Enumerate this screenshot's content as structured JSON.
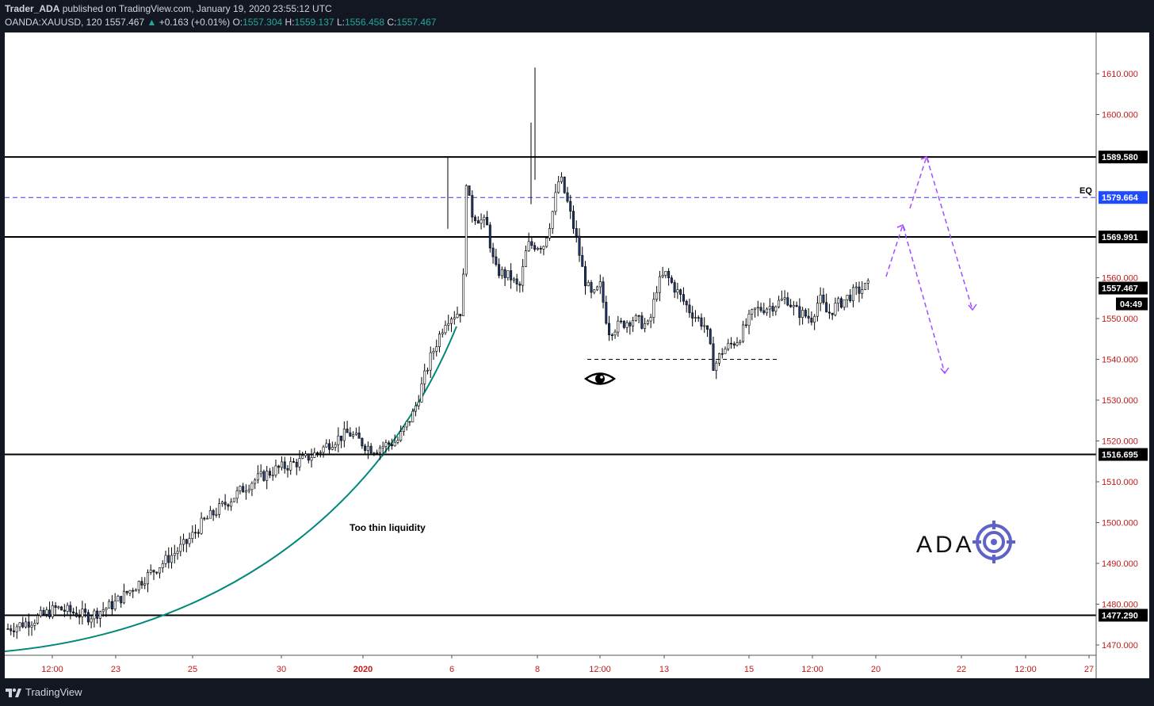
{
  "header": {
    "publisher": "Trader_ADA",
    "published_text": "published on TradingView.com, January 19, 2020 23:55:12 UTC",
    "symbol": "OANDA:XAUUSD, 120",
    "last": "1557.467",
    "change": "+0.163 (+0.01%)",
    "o_label": "O:",
    "o": "1557.304",
    "h_label": "H:",
    "h": "1559.137",
    "l_label": "L:",
    "l": "1556.458",
    "c_label": "C:",
    "c": "1557.467"
  },
  "footer": {
    "brand": "TradingView"
  },
  "colors": {
    "up": "#26a69a",
    "candle_body_down": "#1e3a6e",
    "projection": "#a64dff",
    "eq_line": "#3f3fd8",
    "axis_text": "#c21a1a"
  },
  "chart_data": {
    "type": "candlestick",
    "y_axis": {
      "range": [
        1466,
        1617
      ],
      "ticks": [
        1470,
        1480,
        1490,
        1500,
        1510,
        1520,
        1530,
        1540,
        1550,
        1560,
        1600,
        1610
      ],
      "tick_labels": [
        "1470.000",
        "1480.000",
        "1490.000",
        "1500.000",
        "1510.000",
        "1520.000",
        "1530.000",
        "1540.000",
        "1550.000",
        "1560.000",
        "1600.000",
        "1610.000"
      ]
    },
    "x_axis": {
      "tick_labels": [
        "12:00",
        "23",
        "25",
        "30",
        "2020",
        "6",
        "8",
        "12:00",
        "13",
        "15",
        "12:00",
        "20",
        "22",
        "12:00",
        "27"
      ]
    },
    "horizontal_levels": [
      {
        "price": 1589.58,
        "label": "1589.580",
        "style": "solid"
      },
      {
        "price": 1579.664,
        "label": "1579.664",
        "style": "dashed",
        "name": "EQ"
      },
      {
        "price": 1569.991,
        "label": "1569.991",
        "style": "solid"
      },
      {
        "price": 1516.695,
        "label": "1516.695",
        "style": "solid"
      },
      {
        "price": 1477.29,
        "label": "1477.290",
        "style": "solid"
      }
    ],
    "last_price": {
      "price": 1557.467,
      "label": "1557.467",
      "countdown": "04:49"
    },
    "candle_path": [
      [
        0,
        1474
      ],
      [
        3,
        1476
      ],
      [
        6,
        1479
      ],
      [
        10,
        1477
      ],
      [
        13,
        1480
      ],
      [
        16,
        1485
      ],
      [
        19,
        1490
      ],
      [
        22,
        1495
      ],
      [
        24,
        1500
      ],
      [
        27,
        1505
      ],
      [
        30,
        1510
      ],
      [
        33,
        1513
      ],
      [
        36,
        1515
      ],
      [
        38,
        1517
      ],
      [
        40,
        1520
      ],
      [
        42,
        1522
      ],
      [
        44,
        1519
      ],
      [
        45,
        1518
      ],
      [
        48,
        1520
      ],
      [
        50,
        1527
      ],
      [
        52,
        1540
      ],
      [
        54,
        1550
      ],
      [
        56,
        1552
      ],
      [
        56.5,
        1585
      ],
      [
        57,
        1576
      ],
      [
        59,
        1573
      ],
      [
        60,
        1562
      ],
      [
        62,
        1560
      ],
      [
        63,
        1557
      ],
      [
        64,
        1568
      ],
      [
        66,
        1568
      ],
      [
        67,
        1575
      ],
      [
        68,
        1585
      ],
      [
        69,
        1578
      ],
      [
        70,
        1570
      ],
      [
        71,
        1560
      ],
      [
        72,
        1555
      ],
      [
        73,
        1558
      ],
      [
        74,
        1547
      ],
      [
        75,
        1548
      ],
      [
        77,
        1550
      ],
      [
        79,
        1548
      ],
      [
        80,
        1558
      ],
      [
        81,
        1561
      ],
      [
        82,
        1558
      ],
      [
        84,
        1552
      ],
      [
        86,
        1548
      ],
      [
        87,
        1538
      ],
      [
        88,
        1542
      ],
      [
        90,
        1545
      ],
      [
        92,
        1552
      ],
      [
        94,
        1553
      ],
      [
        96,
        1555
      ],
      [
        97,
        1552
      ],
      [
        99,
        1550
      ],
      [
        100,
        1555
      ],
      [
        101,
        1551
      ],
      [
        102,
        1553
      ],
      [
        104,
        1556
      ],
      [
        106,
        1558
      ]
    ],
    "support_level": {
      "price": 1540,
      "label": null
    },
    "annotations": [
      {
        "text": "Too thin liquidity",
        "type": "label"
      },
      {
        "text": "EQ",
        "type": "label"
      },
      {
        "type": "eye-icon"
      },
      {
        "type": "curve",
        "description": "parabolic curve"
      },
      {
        "type": "projection-paths",
        "count": 2
      }
    ],
    "watermark": "ADA"
  }
}
